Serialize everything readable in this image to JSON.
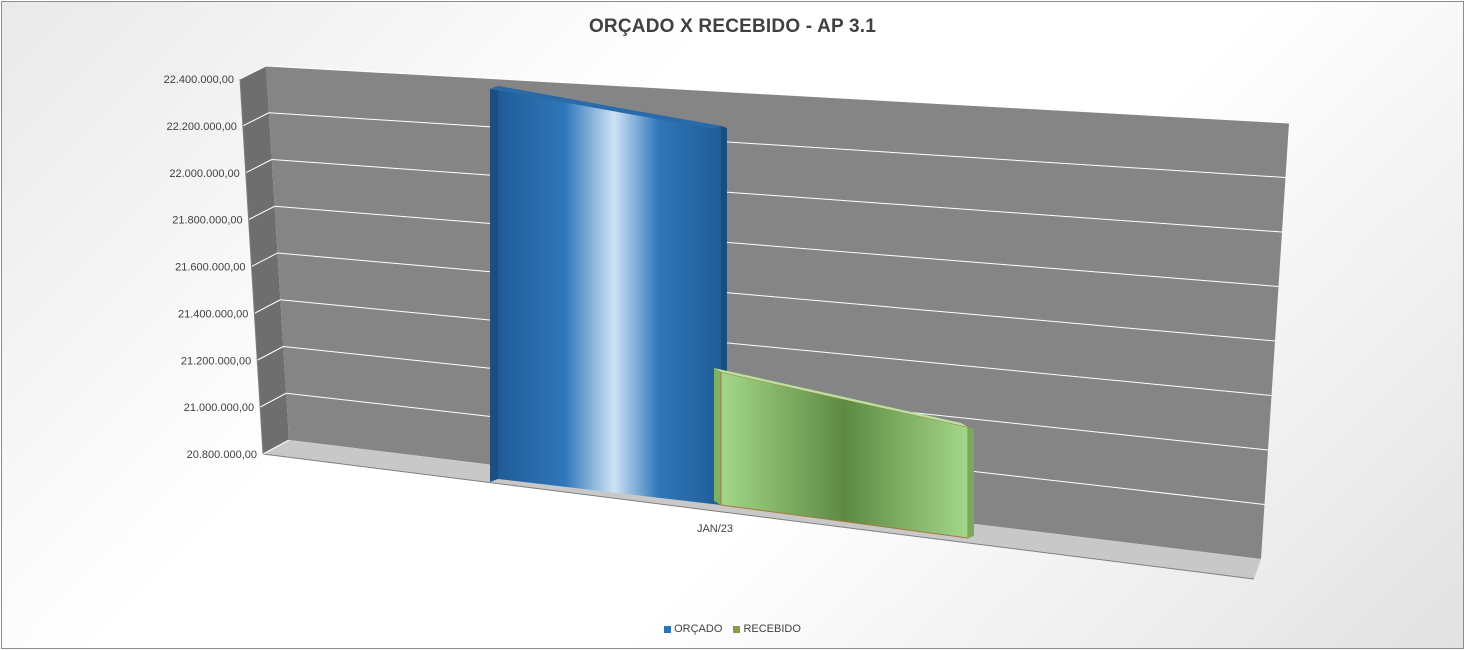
{
  "chart_data": {
    "type": "bar",
    "title": "ORÇADO X RECEBIDO - AP 3.1",
    "categories": [
      "JAN/23"
    ],
    "series": [
      {
        "name": "ORÇADO",
        "values": [
          22340000
        ],
        "color": "#2e75b6"
      },
      {
        "name": "RECEBIDO",
        "values": [
          21130000
        ],
        "color": "#9bcf7e"
      }
    ],
    "ylim": [
      20800000,
      22400000
    ],
    "yticks": [
      "20.800.000,00",
      "21.000.000,00",
      "21.200.000,00",
      "21.400.000,00",
      "21.600.000,00",
      "21.800.000,00",
      "22.000.000,00",
      "22.200.000,00",
      "22.400.000,00"
    ],
    "ytick_values": [
      20800000,
      21000000,
      21200000,
      21400000,
      21600000,
      21800000,
      22000000,
      22200000,
      22400000
    ],
    "grid": true,
    "three_d": true,
    "legend_position": "bottom"
  }
}
